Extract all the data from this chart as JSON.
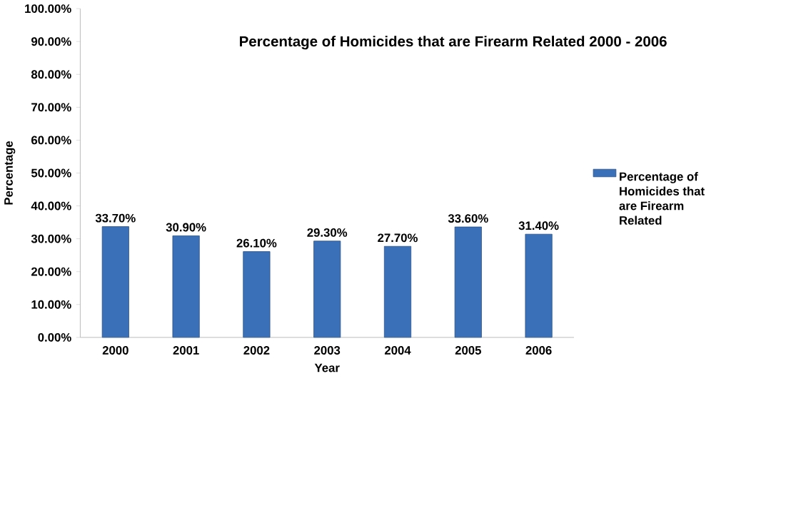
{
  "chart_data": {
    "type": "bar",
    "title": "Percentage of Homicides that are Firearm Related 2000 - 2006",
    "xlabel": "Year",
    "ylabel": "Percentage",
    "categories": [
      "2000",
      "2001",
      "2002",
      "2003",
      "2004",
      "2005",
      "2006"
    ],
    "series": [
      {
        "name": "Percentage of Homicides that are Firearm Related",
        "color": "#3a70b8",
        "values": [
          33.7,
          30.9,
          26.1,
          29.3,
          27.7,
          33.6,
          31.4
        ],
        "value_labels": [
          "33.70%",
          "30.90%",
          "26.10%",
          "29.30%",
          "27.70%",
          "33.60%",
          "31.40%"
        ]
      }
    ],
    "ylim": [
      0,
      100
    ],
    "yticks": [
      {
        "value": 0,
        "label": "0.00%"
      },
      {
        "value": 10,
        "label": "10.00%"
      },
      {
        "value": 20,
        "label": "20.00%"
      },
      {
        "value": 30,
        "label": "30.00%"
      },
      {
        "value": 40,
        "label": "40.00%"
      },
      {
        "value": 50,
        "label": "50.00%"
      },
      {
        "value": 60,
        "label": "60.00%"
      },
      {
        "value": 70,
        "label": "70.00%"
      },
      {
        "value": 80,
        "label": "80.00%"
      },
      {
        "value": 90,
        "label": "90.00%"
      },
      {
        "value": 100,
        "label": "100.00%"
      }
    ],
    "grid": false,
    "legend": "right"
  }
}
